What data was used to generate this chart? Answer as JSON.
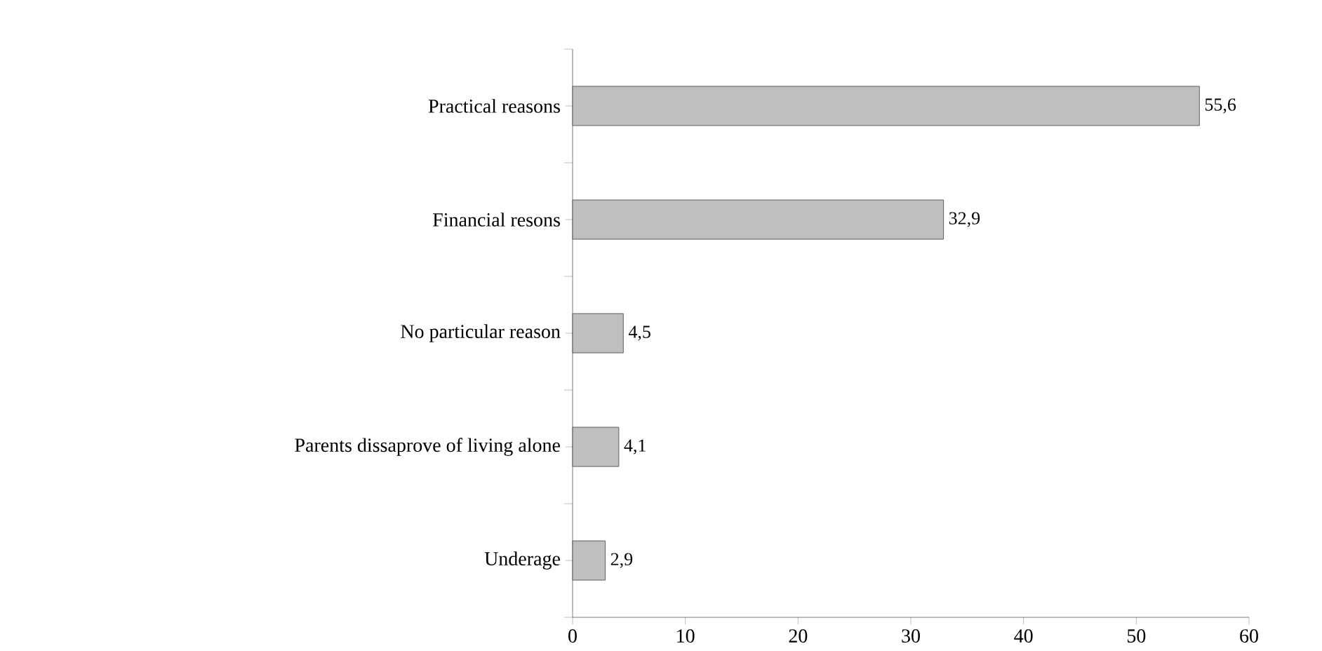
{
  "chart_data": {
    "type": "bar",
    "orientation": "horizontal",
    "categories": [
      "Practical reasons",
      "Financial resons",
      "No particular reason",
      "Parents dissaprove of living alone",
      "Underage"
    ],
    "values": [
      55.6,
      32.9,
      4.5,
      4.1,
      2.9
    ],
    "value_labels": [
      "55,6",
      "32,9",
      "4,5",
      "4,1",
      "2,9"
    ],
    "color": "#bfbfbf",
    "xlim": [
      0,
      60
    ],
    "xticks": [
      0,
      10,
      20,
      30,
      40,
      50,
      60
    ]
  }
}
